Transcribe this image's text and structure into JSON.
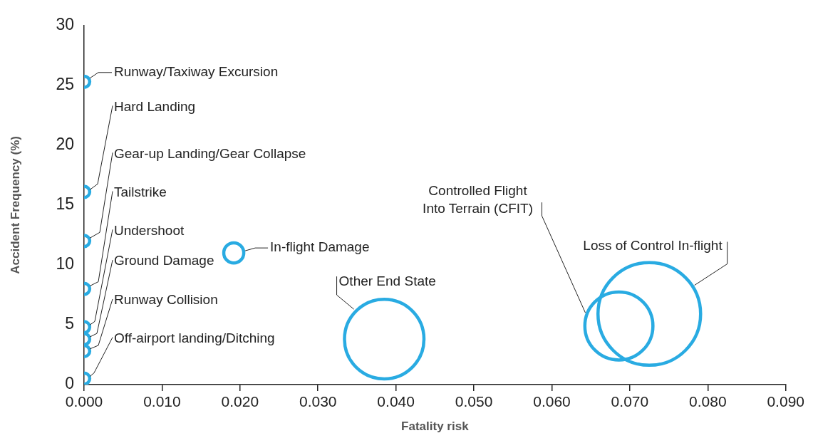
{
  "chart_data": {
    "type": "bubble",
    "xlabel": "Fatality risk",
    "ylabel": "Accident Frequency (%)",
    "x": [
      0,
      0,
      0,
      0,
      0,
      0,
      0,
      0,
      0.0192,
      0.0385,
      0.0686,
      0.0725
    ],
    "values": [
      25.3,
      16.1,
      12.0,
      8.0,
      4.8,
      3.8,
      2.8,
      0.5,
      11.0,
      3.8,
      4.9,
      5.9
    ],
    "sizes": [
      0.012,
      0.012,
      0.012,
      0.012,
      0.012,
      0.012,
      0.012,
      0.012,
      0.038,
      0.6,
      0.44,
      1
    ],
    "color": "#29abe2",
    "xlim": [
      0,
      0.09
    ],
    "xticks": [
      {
        "value": 0,
        "label": "0.000"
      },
      {
        "value": 0.01,
        "label": "0.010"
      },
      {
        "value": 0.02,
        "label": "0.020"
      },
      {
        "value": 0.03,
        "label": "0.030"
      },
      {
        "value": 0.04,
        "label": "0.040"
      },
      {
        "value": 0.05,
        "label": "0.050"
      },
      {
        "value": 0.06,
        "label": "0.060"
      },
      {
        "value": 0.07,
        "label": "0.070"
      },
      {
        "value": 0.08,
        "label": "0.080"
      },
      {
        "value": 0.09,
        "label": "0.090"
      }
    ],
    "ylim": [
      0,
      30
    ],
    "yticks": [
      0,
      5,
      10,
      15,
      20,
      25,
      30
    ],
    "grid": false,
    "legend": false,
    "relative": false,
    "annotations": [
      {
        "text": "Runway/Taxiway Excursion",
        "x": 0,
        "y": 25.3
      },
      {
        "text": "Hard Landing",
        "x": 0,
        "y": 16.1
      },
      {
        "text": "Gear-up Landing/Gear Collapse",
        "x": 0,
        "y": 12.0
      },
      {
        "text": "Tailstrike",
        "x": 0,
        "y": 8.0
      },
      {
        "text": "Undershoot",
        "x": 0,
        "y": 4.8
      },
      {
        "text": "Ground Damage",
        "x": 0,
        "y": 3.8
      },
      {
        "text": "Runway Collision",
        "x": 0,
        "y": 2.8
      },
      {
        "text": "Off-airport landing/Ditching",
        "x": 0,
        "y": 0.5
      },
      {
        "text": "In-flight Damage",
        "x": 0.0192,
        "y": 11.0
      },
      {
        "text": "Other End State",
        "x": 0.0346,
        "y": 6.3
      },
      {
        "text": "Controlled Flight Into Terrain (CFIT)",
        "x": 0.0643,
        "y": 6.0
      },
      {
        "text": "Loss of Control In-flight",
        "x": 0.0783,
        "y": 8.3
      }
    ]
  }
}
